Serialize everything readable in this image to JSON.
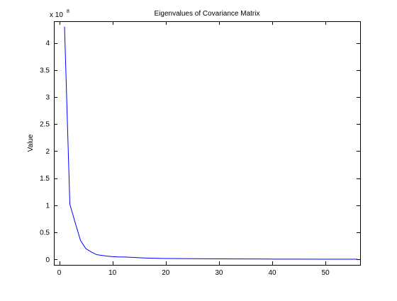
{
  "chart_data": {
    "type": "line",
    "title": "Eigenvalues of Covariance Matrix",
    "xlabel": "",
    "ylabel": "Value",
    "y_exponent": {
      "prefix": "x 10",
      "power": "8",
      "factor": 100000000
    },
    "xlim": [
      -1,
      56.5
    ],
    "ylim": [
      -0.1,
      4.4
    ],
    "xticks": [
      0,
      10,
      20,
      30,
      40,
      50
    ],
    "xtick_labels": [
      "0",
      "10",
      "20",
      "30",
      "40",
      "50"
    ],
    "yticks": [
      0,
      0.5,
      1,
      1.5,
      2,
      2.5,
      3,
      3.5,
      4
    ],
    "ytick_labels": [
      "0",
      "0.5",
      "1",
      "1.5",
      "2",
      "2.5",
      "3",
      "3.5",
      "4"
    ],
    "grid": false,
    "box": true,
    "series": [
      {
        "color": "#0000ff",
        "x": [
          1,
          2,
          3,
          4,
          5,
          6,
          7,
          8,
          9,
          10,
          11,
          12,
          13,
          14,
          15,
          16,
          17,
          18,
          19,
          20,
          25,
          30,
          35,
          40,
          45,
          50,
          56
        ],
        "y": [
          4.3,
          1.02,
          0.68,
          0.35,
          0.2,
          0.14,
          0.09,
          0.075,
          0.062,
          0.052,
          0.048,
          0.046,
          0.043,
          0.038,
          0.032,
          0.028,
          0.025,
          0.022,
          0.02,
          0.018,
          0.015,
          0.012,
          0.009,
          0.007,
          0.006,
          0.005,
          0.004
        ]
      }
    ]
  }
}
